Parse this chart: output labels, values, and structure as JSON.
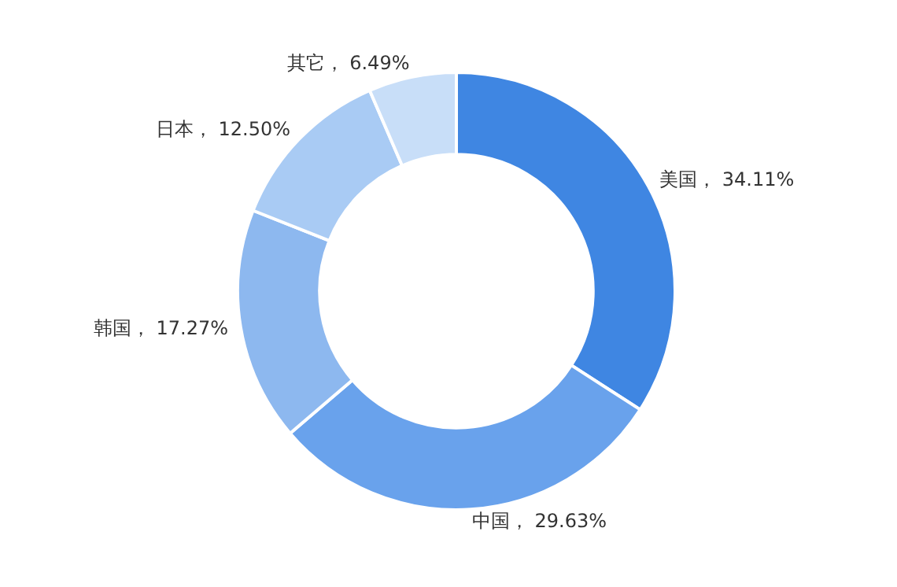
{
  "chart_data": {
    "type": "donut",
    "categories": [
      "美国",
      "中国",
      "韩国",
      "日本",
      "其它"
    ],
    "values": [
      34.11,
      29.63,
      17.27,
      12.5,
      6.49
    ],
    "colors": [
      "#3f86e2",
      "#69a2ec",
      "#8db8ef",
      "#a9cbf4",
      "#c8def8"
    ],
    "value_labels": [
      "34.11%",
      "29.63%",
      "17.27%",
      "12.50%",
      "6.49%"
    ],
    "legend": false
  }
}
